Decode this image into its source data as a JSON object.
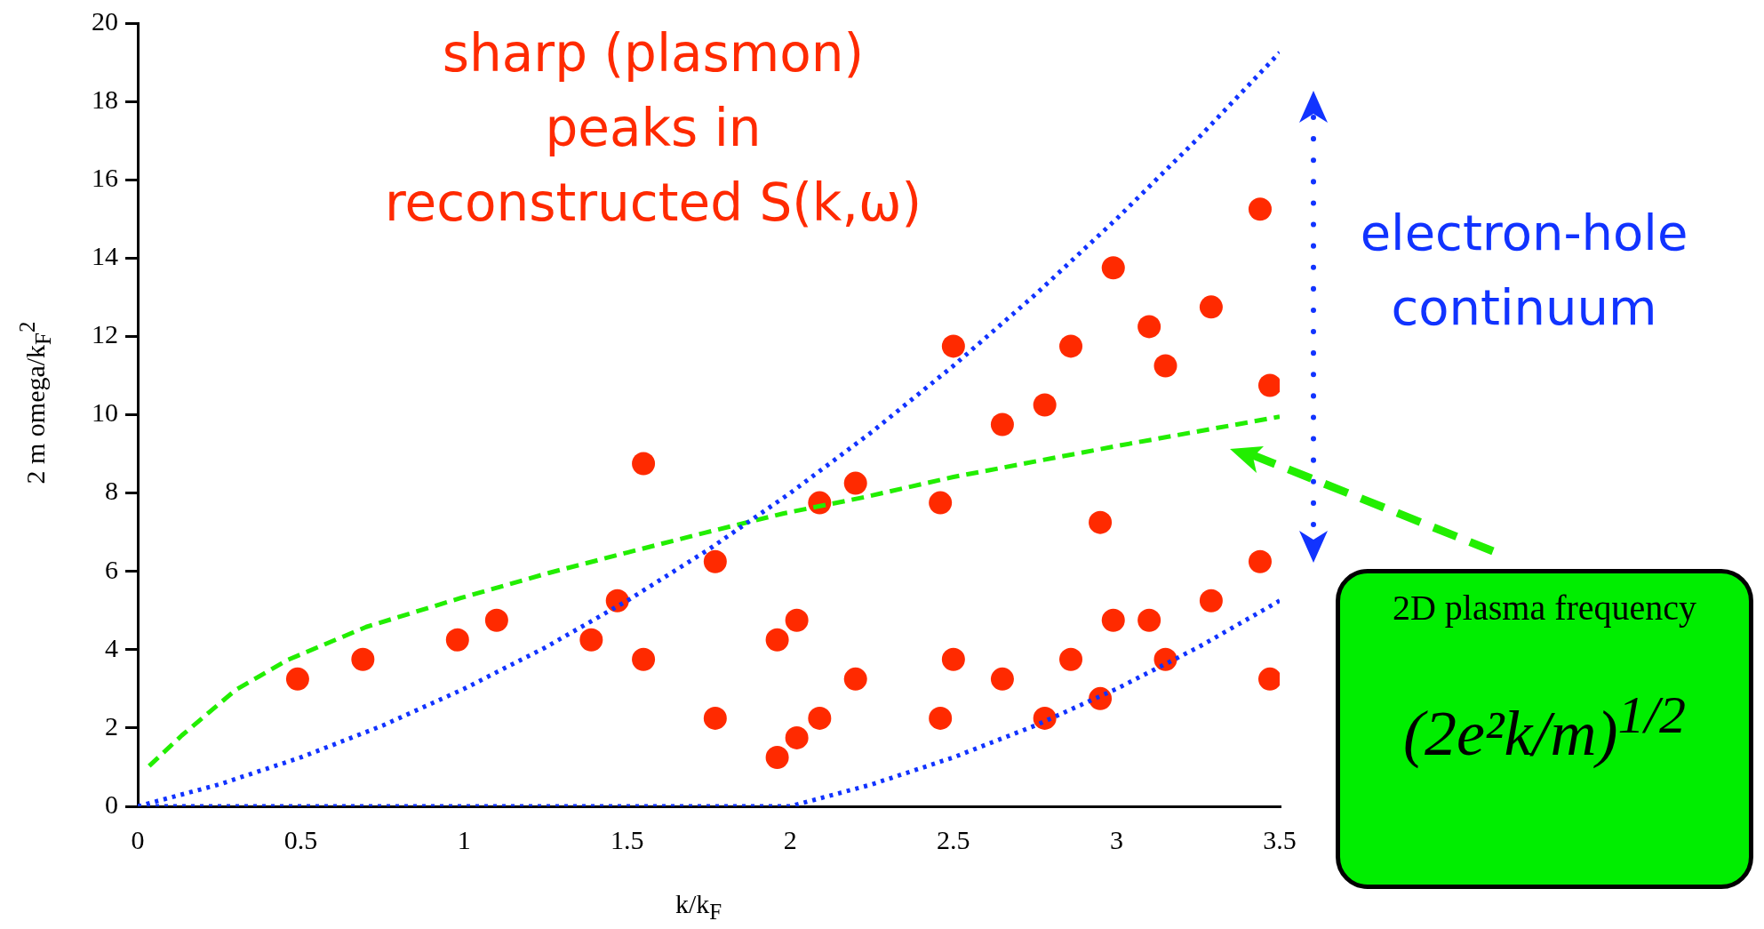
{
  "chart_data": {
    "type": "scatter",
    "title": "sharp (plasmon) peaks in reconstructed S(k,ω)",
    "xlabel": "k/k$_{F}$",
    "ylabel": "2 m omega/k$_{F}$$^{2}$",
    "annotations": [
      "electron-hole continuum",
      "2D plasma frequency",
      "(2e²k/m)$^{1/2}$"
    ],
    "xlim": [
      0,
      3.5
    ],
    "xticks": [
      0,
      0.5,
      1,
      1.5,
      2,
      2.5,
      3,
      3.5
    ],
    "ylim": [
      0,
      20
    ],
    "yticks": [
      0,
      2,
      4,
      6,
      8,
      10,
      12,
      14,
      16,
      18,
      20
    ],
    "grid": false,
    "legend": false,
    "series": [
      {
        "type": "line",
        "color": "#1133ff",
        "line_style": "dotted",
        "marker": "none",
        "x": [
          0,
          0.25,
          0.5,
          0.75,
          1,
          1.25,
          1.5,
          1.75,
          2,
          2.25,
          2.5,
          2.75,
          3,
          3.25,
          3.5
        ],
        "values": [
          0,
          0.56,
          1.25,
          2.06,
          3,
          4.06,
          5.25,
          6.56,
          8,
          9.56,
          11.25,
          13.06,
          15,
          17.06,
          19.25
        ]
      },
      {
        "type": "line",
        "color": "#1133ff",
        "line_style": "dotted",
        "marker": "none",
        "x": [
          0,
          0.5,
          1,
          1.5,
          2,
          2.25,
          2.5,
          2.75,
          3,
          3.25,
          3.5
        ],
        "values": [
          0,
          0,
          0,
          0,
          0,
          0.56,
          1.25,
          2.06,
          3,
          4.06,
          5.25
        ]
      },
      {
        "type": "line",
        "color": "#22ee00",
        "line_style": "dashed",
        "marker": "none",
        "x": [
          0.035,
          0.135,
          0.3,
          0.46,
          0.7,
          0.99,
          1.26,
          1.5,
          1.74,
          1.98,
          2.23,
          2.5,
          3,
          3.5
        ],
        "values": [
          1.03,
          1.81,
          2.97,
          3.74,
          4.58,
          5.32,
          5.96,
          6.48,
          6.99,
          7.48,
          7.9,
          8.41,
          9.2,
          9.95
        ]
      },
      {
        "type": "scatter",
        "color": "#ff2a00",
        "marker": "circle",
        "x": [
          0.49,
          0.69,
          0.98,
          1.1,
          1.39,
          1.47,
          1.55,
          1.55,
          1.77,
          1.77,
          1.96,
          1.96,
          2.02,
          2.02,
          2.09,
          2.09,
          2.2,
          2.2,
          2.46,
          2.46,
          2.5,
          2.5,
          2.65,
          2.65,
          2.78,
          2.78,
          2.86,
          2.86,
          2.95,
          2.95,
          2.99,
          2.99,
          3.1,
          3.1,
          3.15,
          3.15,
          3.29,
          3.29,
          3.44,
          3.44,
          3.47,
          3.47
        ],
        "values": [
          3.25,
          3.75,
          4.25,
          4.75,
          4.25,
          5.25,
          8.75,
          3.75,
          6.25,
          2.25,
          1.25,
          4.25,
          1.75,
          4.75,
          2.25,
          7.75,
          8.25,
          3.25,
          7.75,
          2.25,
          11.75,
          3.75,
          9.75,
          3.25,
          10.25,
          2.25,
          11.75,
          3.75,
          7.25,
          2.75,
          13.75,
          4.75,
          12.25,
          4.75,
          11.25,
          3.75,
          12.75,
          5.25,
          15.25,
          6.25,
          10.75,
          3.25
        ]
      }
    ]
  }
}
